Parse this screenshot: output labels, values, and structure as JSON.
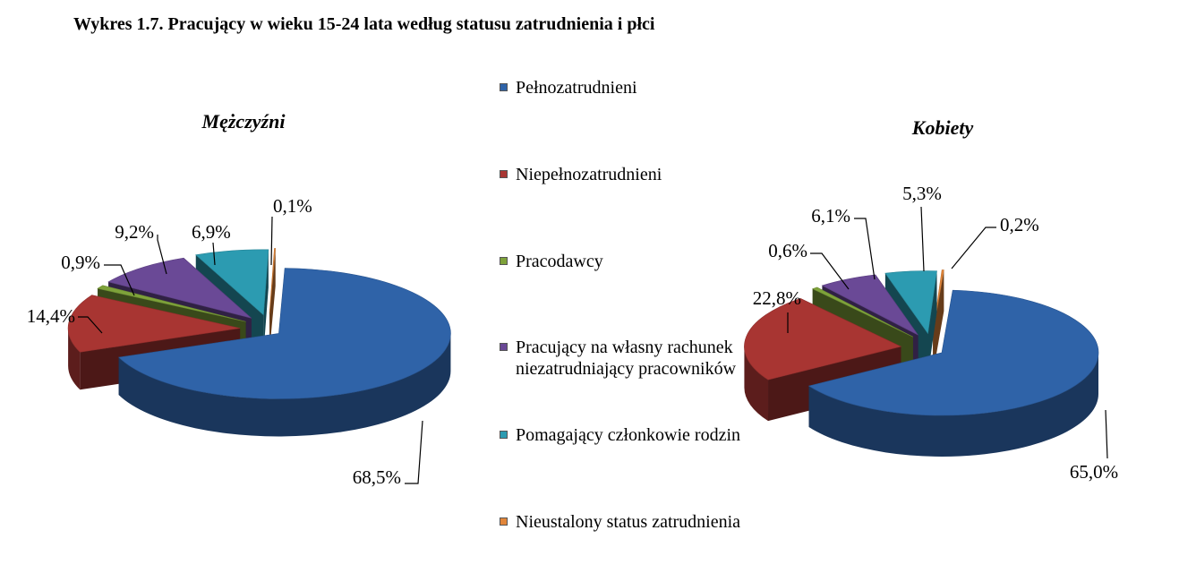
{
  "title": "Wykres 1.7. Pracujący w wieku 15-24 lata według statusu zatrudnienia i płci",
  "legend": [
    {
      "label": "Pełnozatrudnieni",
      "color": "#2F63A8"
    },
    {
      "label": "Niepełnozatrudnieni",
      "color": "#A83532"
    },
    {
      "label": "Pracodawcy",
      "color": "#7EA23A"
    },
    {
      "label": "Pracujący na własny rachunek niezatrudniający pracowników",
      "color": "#6A4996"
    },
    {
      "label": "Pomagający członkowie rodzin",
      "color": "#2C9BB1"
    },
    {
      "label": "Nieustalony status zatrudnienia",
      "color": "#E2863A"
    }
  ],
  "chart_data": [
    {
      "type": "pie",
      "title": "Mężczyźni",
      "categories": [
        "Pełnozatrudnieni",
        "Niepełnozatrudnieni",
        "Pracodawcy",
        "Pracujący na własny rachunek niezatrudniający pracowników",
        "Pomagający członkowie rodzin",
        "Nieustalony status zatrudnienia"
      ],
      "values": [
        68.5,
        14.4,
        0.9,
        9.2,
        6.9,
        0.1
      ],
      "labels": [
        "68,5%",
        "14,4%",
        "0,9%",
        "9,2%",
        "6,9%",
        "0,1%"
      ],
      "exploded": true,
      "style": "3d",
      "legend": "between charts"
    },
    {
      "type": "pie",
      "title": "Kobiety",
      "categories": [
        "Pełnozatrudnieni",
        "Niepełnozatrudnieni",
        "Pracodawcy",
        "Pracujący na własny rachunek niezatrudniający pracowników",
        "Pomagający członkowie rodzin",
        "Nieustalony status zatrudnienia"
      ],
      "values": [
        65.0,
        22.8,
        0.6,
        6.1,
        5.3,
        0.2
      ],
      "labels": [
        "65,0%",
        "22,8%",
        "0,6%",
        "6,1%",
        "5,3%",
        "0,2%"
      ],
      "exploded": true,
      "style": "3d",
      "legend": "between charts"
    }
  ]
}
